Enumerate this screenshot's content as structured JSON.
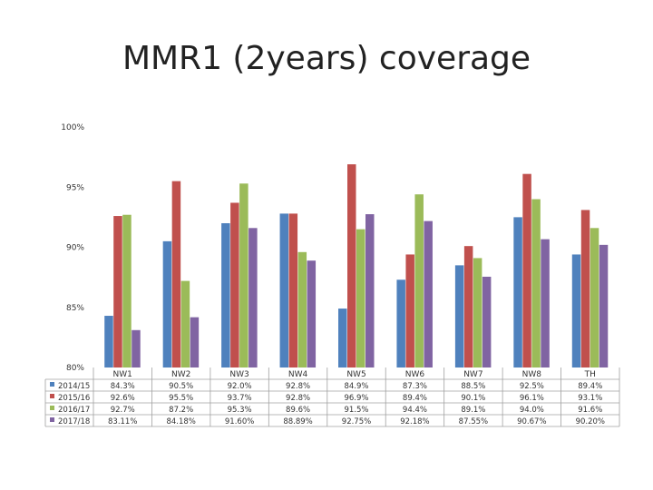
{
  "title": "MMR1 (2years) coverage",
  "chart_data": {
    "type": "bar",
    "title": "MMR1 (2years) coverage",
    "xlabel": "",
    "ylabel": "",
    "ylim": [
      80,
      100
    ],
    "y_ticks": [
      "100%",
      "95%",
      "90%",
      "85%",
      "80%"
    ],
    "y_tick_values": [
      100,
      95,
      90,
      85,
      80
    ],
    "grid": false,
    "legend": "data table below chart",
    "categories": [
      "NW1",
      "NW2",
      "NW3",
      "NW4",
      "NW5",
      "NW6",
      "NW7",
      "NW8",
      "TH"
    ],
    "series": [
      {
        "name": "2014/15",
        "color": "#4F81BD",
        "values": [
          84.3,
          90.5,
          92.0,
          92.8,
          84.9,
          87.3,
          88.5,
          92.5,
          89.4
        ],
        "labels": [
          "84.3%",
          "90.5%",
          "92.0%",
          "92.8%",
          "84.9%",
          "87.3%",
          "88.5%",
          "92.5%",
          "89.4%"
        ]
      },
      {
        "name": "2015/16",
        "color": "#C0504D",
        "values": [
          92.6,
          95.5,
          93.7,
          92.8,
          96.9,
          89.4,
          90.1,
          96.1,
          93.1
        ],
        "labels": [
          "92.6%",
          "95.5%",
          "93.7%",
          "92.8%",
          "96.9%",
          "89.4%",
          "90.1%",
          "96.1%",
          "93.1%"
        ]
      },
      {
        "name": "2016/17",
        "color": "#9BBB59",
        "values": [
          92.7,
          87.2,
          95.3,
          89.6,
          91.5,
          94.4,
          89.1,
          94.0,
          91.6
        ],
        "labels": [
          "92.7%",
          "87.2%",
          "95.3%",
          "89.6%",
          "91.5%",
          "94.4%",
          "89.1%",
          "94.0%",
          "91.6%"
        ]
      },
      {
        "name": "2017/18",
        "color": "#8064A2",
        "values": [
          83.11,
          84.18,
          91.6,
          88.89,
          92.75,
          92.18,
          87.55,
          90.67,
          90.2
        ],
        "labels": [
          "83.11%",
          "84.18%",
          "91.60%",
          "88.89%",
          "92.75%",
          "92.18%",
          "87.55%",
          "90.67%",
          "90.20%"
        ]
      }
    ]
  }
}
